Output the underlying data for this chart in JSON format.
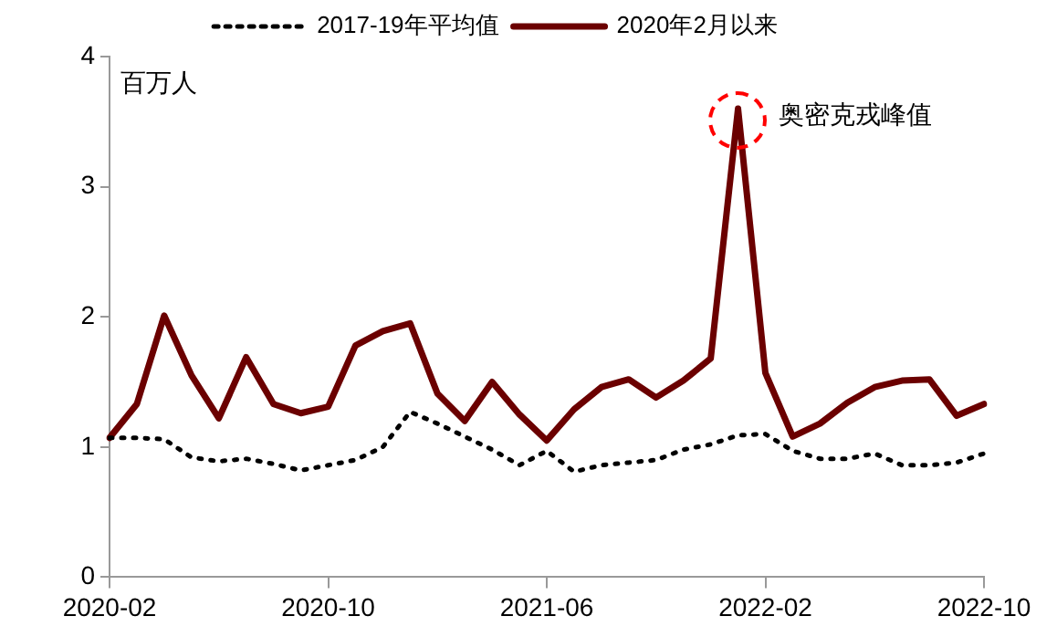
{
  "chart_data": {
    "type": "line",
    "ylabel": "百万人",
    "categories": [
      "2020-02",
      null,
      null,
      null,
      null,
      null,
      null,
      null,
      "2020-10",
      null,
      null,
      null,
      null,
      null,
      null,
      null,
      "2021-06",
      null,
      null,
      null,
      null,
      null,
      null,
      null,
      "2022-02",
      null,
      null,
      null,
      null,
      null,
      null,
      null,
      "2022-10"
    ],
    "series": [
      {
        "name": "2017-19年平均值",
        "color": "#000000",
        "line_style": "dotted",
        "values": [
          1.07,
          1.07,
          1.06,
          0.92,
          0.89,
          0.91,
          0.87,
          0.82,
          0.86,
          0.9,
          1.0,
          1.27,
          1.18,
          1.08,
          0.98,
          0.86,
          0.97,
          0.81,
          0.86,
          0.88,
          0.9,
          0.98,
          1.02,
          1.09,
          1.1,
          0.97,
          0.91,
          0.91,
          0.95,
          0.86,
          0.86,
          0.88,
          0.95
        ]
      },
      {
        "name": "2020年2月以来",
        "color": "#6b0000",
        "line_style": "solid",
        "values": [
          1.07,
          1.33,
          2.01,
          1.55,
          1.22,
          1.69,
          1.33,
          1.26,
          1.31,
          1.78,
          1.89,
          1.95,
          1.41,
          1.2,
          1.5,
          1.25,
          1.05,
          1.29,
          1.46,
          1.52,
          1.38,
          1.51,
          1.68,
          3.6,
          1.57,
          1.08,
          1.18,
          1.34,
          1.46,
          1.51,
          1.52,
          1.24,
          1.33
        ]
      }
    ],
    "ylim": [
      0,
      4
    ],
    "yticks": [
      0,
      1,
      2,
      3,
      4
    ],
    "annotations": [
      "奥密克戎峰值"
    ],
    "grid": false,
    "legend": "top",
    "marker": "none"
  }
}
